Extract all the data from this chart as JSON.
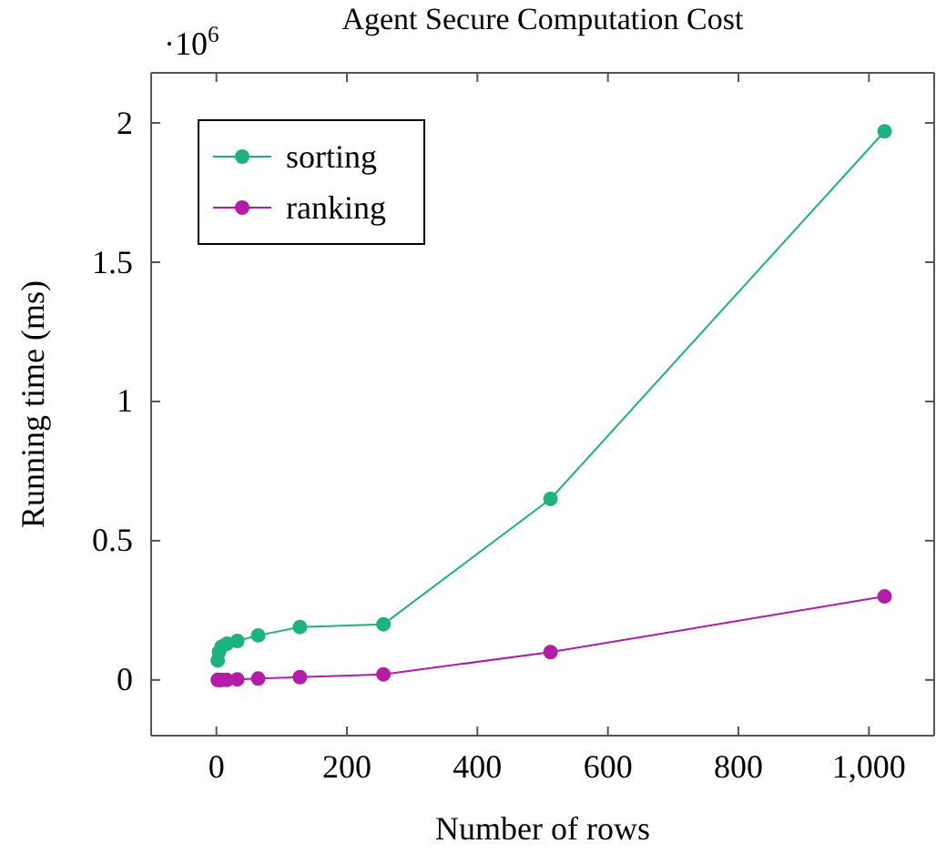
{
  "chart_data": {
    "type": "line",
    "title": "Agent Secure Computation Cost",
    "xlabel": "Number of rows",
    "ylabel": "Running time (ms)",
    "annotations": [
      "·10$^{6}$"
    ],
    "x": [
      2,
      4,
      8,
      16,
      32,
      64,
      128,
      256,
      512,
      1024
    ],
    "series": [
      {
        "name": "sorting",
        "color": "#1cb37f",
        "values": [
          0.07,
          0.1,
          0.12,
          0.13,
          0.14,
          0.16,
          0.19,
          0.2,
          0.65,
          1.97
        ]
      },
      {
        "name": "ranking",
        "color": "#b31ca6",
        "values": [
          0,
          0,
          0,
          0,
          0.002,
          0.005,
          0.01,
          0.02,
          0.1,
          0.3
        ]
      }
    ],
    "xlim": [
      -100,
      1100
    ],
    "xticks": [
      0,
      200,
      400,
      600,
      800,
      {
        "value": 1000,
        "label": "1,000"
      }
    ],
    "ylim": [
      -0.2,
      2.18
    ],
    "yticks": [
      0,
      0.5,
      1,
      1.5,
      2
    ],
    "legend": "top left",
    "marker": "circle",
    "line_style": "solid",
    "grid": false
  }
}
